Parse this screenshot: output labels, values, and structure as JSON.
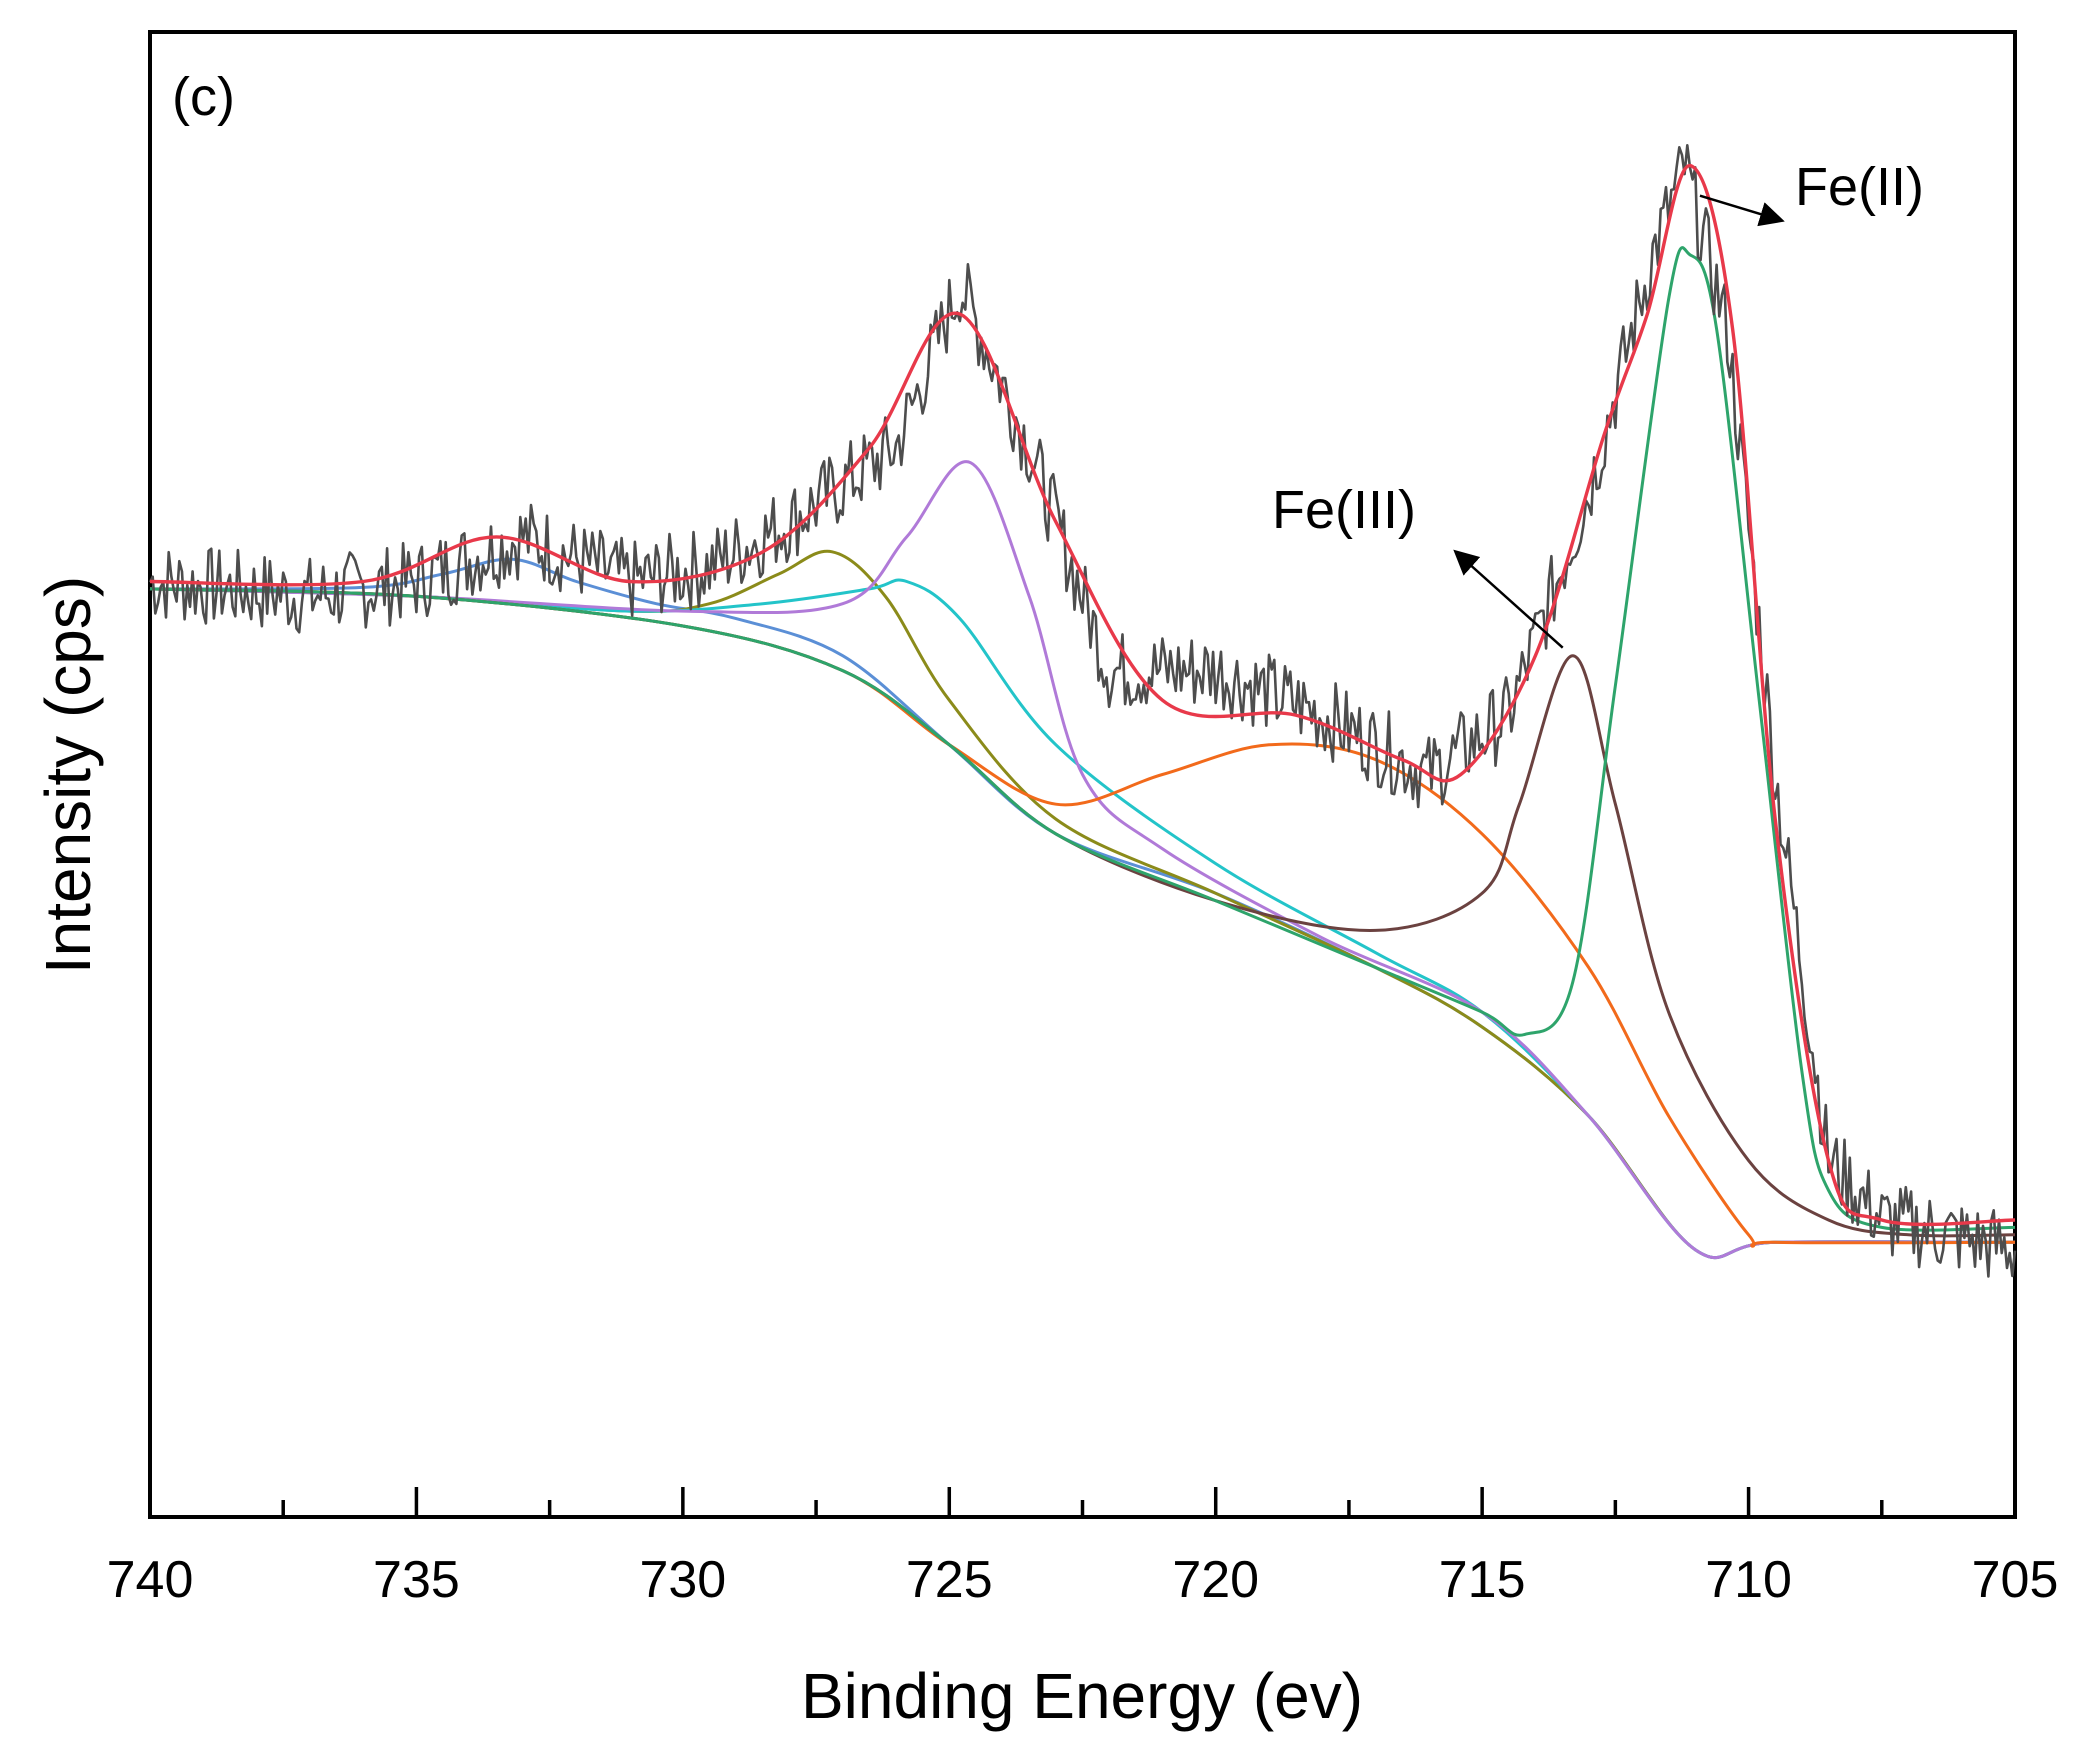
{
  "chart_data": {
    "type": "line",
    "panel_label": "(c)",
    "xlabel": "Binding Energy (ev)",
    "ylabel": "Intensity (cps)",
    "xlim": [
      740,
      705
    ],
    "ylim": [
      0,
      100
    ],
    "x_ticks": [
      740,
      735,
      730,
      725,
      720,
      715,
      710,
      705
    ],
    "grid": false,
    "legend": "none",
    "annotations": [
      {
        "text": "Fe(II)",
        "points_to": [
          711.1,
          91
        ]
      },
      {
        "text": "Fe(III)",
        "points_to": [
          713.3,
          58
        ]
      }
    ],
    "series": [
      {
        "name": "raw",
        "color": "#4d4d4d",
        "x": [
          740,
          737,
          735,
          733,
          731,
          729.5,
          728,
          726,
          724.8,
          723.5,
          722,
          720,
          718,
          716,
          714.5,
          713,
          711.8,
          711.2,
          710.4,
          709.5,
          708.5,
          707.5,
          705
        ],
        "y": [
          63,
          62,
          63,
          66,
          63,
          64,
          67,
          72,
          83,
          72,
          57,
          57,
          54,
          50,
          54,
          69,
          85,
          91,
          80,
          50,
          24,
          20,
          18
        ]
      },
      {
        "name": "envelope",
        "color": "#e8394a",
        "x": [
          740,
          736,
          733.5,
          731,
          728.5,
          726.5,
          724.8,
          723,
          721,
          718.5,
          716.5,
          715.4,
          714,
          712.7,
          711.9,
          711.1,
          710.3,
          709.5,
          708.5,
          707.5,
          705
        ],
        "y": [
          63,
          63,
          66,
          63,
          65,
          72,
          81,
          67,
          55,
          54,
          51,
          50,
          58,
          73,
          81,
          91,
          80,
          47,
          24,
          20,
          20
        ]
      },
      {
        "name": "peak-733",
        "color": "#5b8fd6",
        "x": [
          740,
          736,
          734.5,
          733.2,
          732,
          730.5,
          729,
          727,
          725,
          723,
          720,
          717,
          715,
          713,
          711,
          709.5,
          705
        ],
        "y": [
          62.5,
          62.6,
          63.5,
          64.5,
          63,
          61.5,
          60.5,
          58,
          52,
          46,
          42,
          37,
          33,
          27,
          18,
          18.5,
          18.5
        ]
      },
      {
        "name": "peak-727",
        "color": "#8b8b1a",
        "x": [
          740,
          735,
          731,
          729.5,
          728.2,
          727.2,
          726.2,
          725,
          723,
          720,
          717,
          715,
          713,
          711,
          709.5,
          705
        ],
        "y": [
          62.5,
          62,
          61,
          61.5,
          63.5,
          65,
          62,
          55,
          47,
          42,
          37,
          33,
          27,
          18,
          18.5,
          18.5
        ]
      },
      {
        "name": "peak-726",
        "color": "#23c4c9",
        "x": [
          740,
          735,
          731,
          728.5,
          726.5,
          725.8,
          724.8,
          723,
          720,
          717,
          715,
          713,
          711,
          709.5,
          705
        ],
        "y": [
          62.5,
          62,
          61,
          61.5,
          62.5,
          63,
          60.5,
          52,
          44,
          38,
          34,
          27,
          18,
          18.5,
          18.5
        ]
      },
      {
        "name": "peak-724.6",
        "color": "#b07ad8",
        "x": [
          740,
          735,
          730,
          727,
          725.8,
          724.6,
          723.5,
          722.5,
          721,
          718,
          715,
          713,
          711,
          709.5,
          705
        ],
        "y": [
          62.5,
          62,
          61,
          61.5,
          66,
          71,
          62,
          50,
          45,
          39,
          34,
          27,
          18,
          18.5,
          18.5
        ]
      },
      {
        "name": "satellite-719",
        "color": "#f26a1b",
        "x": [
          740,
          735,
          730,
          727,
          725,
          723,
          721,
          719,
          717,
          715,
          713,
          711.5,
          710,
          709.5,
          705
        ],
        "y": [
          62.5,
          62,
          60,
          57,
          52,
          48,
          50,
          52,
          51,
          46,
          37,
          27,
          19,
          18.5,
          18.5
        ]
      },
      {
        "name": "Fe(III)",
        "color": "#6b4240",
        "x": [
          740,
          735,
          730,
          727,
          725,
          723,
          720,
          717,
          715,
          714.3,
          713.3,
          712.5,
          711.5,
          710,
          708.5,
          707,
          705
        ],
        "y": [
          62.5,
          62,
          60,
          57,
          52,
          46,
          41.5,
          39.5,
          42,
          48,
          58,
          48,
          34,
          24,
          20,
          19,
          19
        ]
      },
      {
        "name": "Fe(II)",
        "color": "#2ea46b",
        "x": [
          740,
          735,
          730,
          727,
          725,
          723,
          720,
          717,
          715,
          714.2,
          713.3,
          712.5,
          711.5,
          711.1,
          710.6,
          709.8,
          709,
          708.5,
          707.5,
          705
        ],
        "y": [
          62.5,
          62,
          60,
          57,
          52,
          46,
          41.5,
          37,
          34,
          32.5,
          36,
          56,
          82,
          85,
          80,
          55,
          30,
          22,
          19.5,
          19.5
        ]
      }
    ]
  }
}
